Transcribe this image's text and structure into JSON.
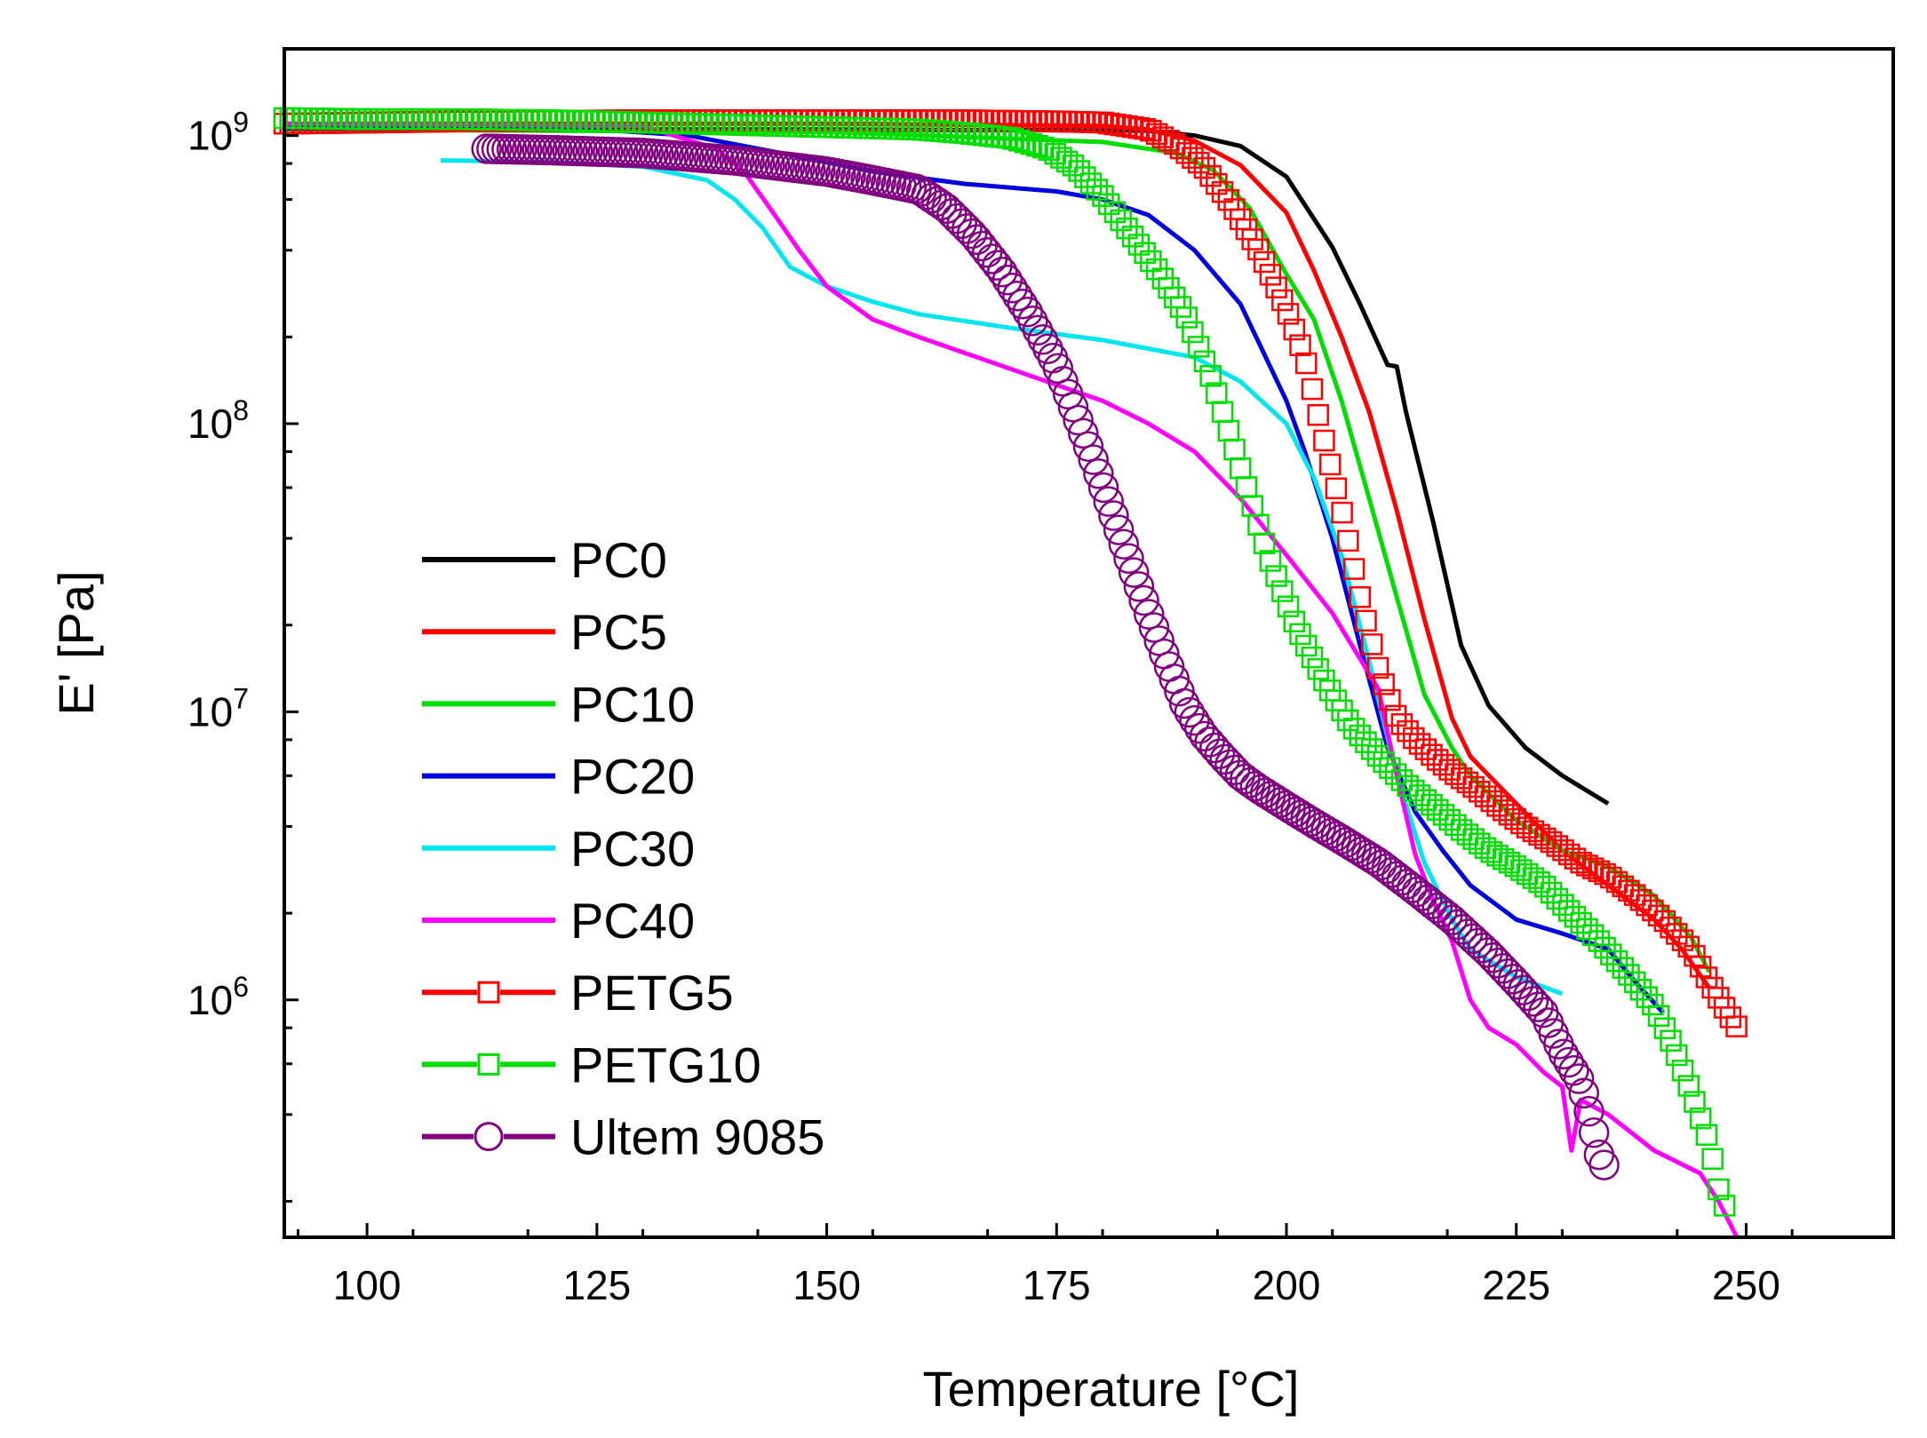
{
  "chart_data": {
    "type": "line",
    "title": "",
    "xlabel": "Temperature [°C]",
    "ylabel": "E' [Pa]",
    "xlim": [
      91,
      266
    ],
    "ylim": [
      150000,
      2000000000
    ],
    "yscale": "log",
    "xticks": [
      100,
      125,
      150,
      175,
      200,
      225,
      250
    ],
    "xtick_labels": [
      "100",
      "125",
      "150",
      "175",
      "200",
      "225",
      "250"
    ],
    "yticks": [
      {
        "value": 1000000,
        "base": "10",
        "exp": "6"
      },
      {
        "value": 10000000,
        "base": "10",
        "exp": "7"
      },
      {
        "value": 100000000,
        "base": "10",
        "exp": "8"
      },
      {
        "value": 1000000000,
        "base": "10",
        "exp": "9"
      }
    ],
    "legend_position": "middle-left",
    "series": [
      {
        "name": "PC0",
        "color": "#000000",
        "marker": "none",
        "x": [
          91,
          150,
          185,
          190,
          195,
          200,
          205,
          208,
          211,
          212,
          213,
          216,
          219,
          222,
          226,
          230,
          235
        ],
        "y": [
          1050000000,
          1050000000,
          1040000000,
          1000000000,
          920000000,
          720000000,
          410000000,
          260000000,
          160000000,
          158000000,
          110000000,
          45000000,
          17000000,
          10500000,
          7500000,
          6000000,
          4800000
        ]
      },
      {
        "name": "PC5",
        "color": "#ff0000",
        "marker": "none",
        "x": [
          91,
          150,
          180,
          185,
          190,
          195,
          200,
          203,
          206,
          209,
          212,
          215,
          218,
          220,
          225,
          230,
          235,
          240,
          243,
          246
        ],
        "y": [
          1100000000,
          1100000000,
          1080000000,
          1050000000,
          960000000,
          790000000,
          540000000,
          340000000,
          200000000,
          110000000,
          50000000,
          21000000,
          9500000,
          7000000,
          4800000,
          3300000,
          2500000,
          1900000,
          1500000,
          1100000
        ]
      },
      {
        "name": "PC10",
        "color": "#00dd00",
        "marker": "none",
        "x": [
          91,
          150,
          180,
          188,
          192,
          196,
          200,
          203,
          206,
          209,
          212,
          215,
          218,
          220,
          225,
          230,
          235,
          240,
          244,
          246
        ],
        "y": [
          1050000000,
          1030000000,
          950000000,
          870000000,
          760000000,
          560000000,
          330000000,
          230000000,
          120000000,
          55000000,
          25000000,
          11500000,
          7500000,
          6000000,
          4200000,
          3300000,
          2900000,
          2300000,
          1650000,
          1250000
        ]
      },
      {
        "name": "PC20",
        "color": "#0000dd",
        "marker": "none",
        "x": [
          91,
          125,
          135,
          145,
          155,
          165,
          175,
          180,
          185,
          190,
          195,
          200,
          202,
          205,
          208,
          211,
          214,
          217,
          220,
          225,
          230,
          235,
          238,
          241
        ],
        "y": [
          1060000000,
          1050000000,
          1000000000,
          870000000,
          750000000,
          680000000,
          640000000,
          600000000,
          530000000,
          400000000,
          260000000,
          120000000,
          80000000,
          40000000,
          17000000,
          7500000,
          4500000,
          3300000,
          2500000,
          1900000,
          1700000,
          1500000,
          1150000,
          900000
        ]
      },
      {
        "name": "PC30",
        "color": "#00e5ee",
        "marker": "none",
        "x": [
          108,
          120,
          130,
          137,
          140,
          143,
          146,
          150,
          155,
          160,
          170,
          180,
          190,
          195,
          200,
          203,
          206,
          209,
          212,
          215,
          218,
          220,
          225,
          230
        ],
        "y": [
          820000000,
          810000000,
          780000000,
          700000000,
          600000000,
          480000000,
          350000000,
          300000000,
          265000000,
          240000000,
          215000000,
          195000000,
          170000000,
          140000000,
          100000000,
          65000000,
          35000000,
          15000000,
          6000000,
          3000000,
          1900000,
          1500000,
          1200000,
          1050000
        ]
      },
      {
        "name": "PC40",
        "color": "#ff00ff",
        "marker": "none",
        "x": [
          91,
          130,
          138,
          141,
          144,
          147,
          150,
          155,
          160,
          170,
          180,
          185,
          190,
          195,
          200,
          205,
          210,
          212,
          214,
          216,
          218,
          220,
          222,
          225,
          228,
          230,
          231,
          232,
          235,
          240,
          245,
          247,
          249
        ],
        "y": [
          1100000000,
          1080000000,
          900000000,
          750000000,
          550000000,
          400000000,
          300000000,
          230000000,
          200000000,
          155000000,
          120000000,
          100000000,
          80000000,
          55000000,
          35000000,
          22000000,
          12000000,
          6000000,
          3200000,
          2200000,
          1600000,
          1000000,
          800000,
          700000,
          560000,
          500000,
          300000,
          450000,
          400000,
          300000,
          250000,
          200000,
          150000
        ]
      },
      {
        "name": "PETG5",
        "color": "#ff0000",
        "marker": "square",
        "x": [
          91,
          110,
          130,
          150,
          165,
          175,
          180,
          185,
          188,
          191,
          194,
          197,
          200,
          202,
          204,
          206,
          208,
          210,
          212,
          214,
          216,
          218,
          220,
          223,
          226,
          229,
          232,
          235,
          238,
          241,
          244,
          246,
          248,
          249.5
        ],
        "y": [
          1100000000,
          1120000000,
          1130000000,
          1130000000,
          1130000000,
          1120000000,
          1110000000,
          1050000000,
          930000000,
          780000000,
          580000000,
          400000000,
          250000000,
          170000000,
          90000000,
          50000000,
          25000000,
          14000000,
          9500000,
          8000000,
          7000000,
          6200000,
          5600000,
          4700000,
          4000000,
          3500000,
          3000000,
          2700000,
          2300000,
          1900000,
          1500000,
          1150000,
          900000,
          760000
        ]
      },
      {
        "name": "PETG10",
        "color": "#00dd00",
        "marker": "square",
        "x": [
          91,
          100,
          110,
          120,
          130,
          140,
          150,
          160,
          165,
          170,
          174,
          177,
          180,
          183,
          186,
          189,
          192,
          195,
          198,
          201,
          204,
          207,
          210,
          213,
          216,
          219,
          222,
          225,
          228,
          231,
          234,
          237,
          240,
          242,
          244,
          246,
          247,
          248
        ],
        "y": [
          1150000000,
          1140000000,
          1140000000,
          1130000000,
          1110000000,
          1090000000,
          1070000000,
          1050000000,
          1020000000,
          980000000,
          900000000,
          780000000,
          620000000,
          460000000,
          340000000,
          240000000,
          140000000,
          70000000,
          35000000,
          20000000,
          13000000,
          9000000,
          7000000,
          5600000,
          4700000,
          3900000,
          3300000,
          2900000,
          2500000,
          2000000,
          1600000,
          1250000,
          950000,
          700000,
          480000,
          320000,
          220000,
          180000
        ]
      },
      {
        "name": "Ultem 9085",
        "color": "#800080",
        "marker": "circle",
        "x": [
          113,
          120,
          130,
          140,
          150,
          155,
          160,
          163,
          166,
          169,
          172,
          175,
          177,
          179,
          181,
          183,
          185,
          187,
          189,
          191,
          193,
          195,
          197,
          200,
          203,
          206,
          210,
          214,
          218,
          222,
          225,
          228,
          230,
          232,
          233,
          234,
          235
        ],
        "y": [
          900000000,
          890000000,
          870000000,
          820000000,
          750000000,
          700000000,
          650000000,
          560000000,
          450000000,
          340000000,
          240000000,
          160000000,
          110000000,
          75000000,
          50000000,
          33000000,
          22000000,
          15000000,
          10500000,
          8300000,
          7000000,
          6000000,
          5400000,
          4700000,
          4100000,
          3600000,
          3000000,
          2400000,
          1900000,
          1450000,
          1150000,
          900000,
          660000,
          520000,
          400000,
          290000,
          250000
        ]
      }
    ]
  }
}
